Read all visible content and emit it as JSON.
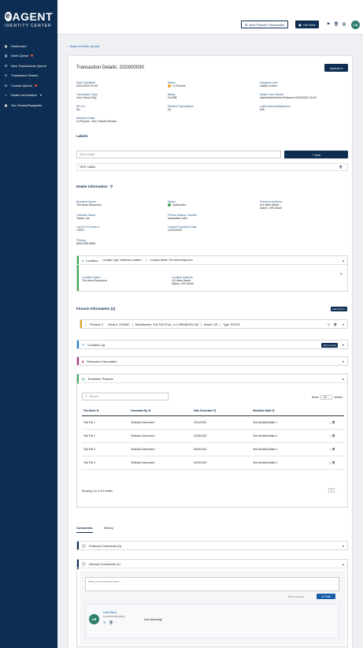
{
  "brand": {
    "name": "AGENT",
    "e": "e",
    "subtitle": "IDENTITY CENTER"
  },
  "sidebar": {
    "items": [
      {
        "label": "Dashboard",
        "icon": "grid-icon"
      },
      {
        "label": "Work Queue",
        "icon": "inbox-icon",
        "dot": true
      },
      {
        "label": "New Transactions Queue",
        "icon": "list-icon"
      },
      {
        "label": "Transaction Search",
        "icon": "search-icon"
      },
      {
        "label": "Contact Queue",
        "icon": "phone-icon",
        "dot": true
      },
      {
        "label": "Dealer Information",
        "icon": "store-icon",
        "caret": "▾"
      },
      {
        "label": "Gun Shows/Swapsets",
        "icon": "calendar-icon"
      }
    ]
  },
  "topbar": {
    "new_firearm_label": "New Firearm Transaction",
    "get_next_label": "Get Next",
    "avatar_initials": "LB"
  },
  "back_link": "Back to Work Queue",
  "transaction": {
    "title": "Transaction Details: 22G000030",
    "actions_label": "Actions",
    "fields": [
      {
        "label": "Date Submitted",
        "value": "02/10/2022 10:40"
      },
      {
        "label": "Status",
        "value": "In Process"
      },
      {
        "label": "Assigned User",
        "value": "Caitlyn Colton"
      },
      {
        "label": "Transaction Type",
        "value": "Gun Check Only"
      },
      {
        "label": "Billing",
        "value": "Full Bill"
      },
      {
        "label": "Dealer Last Viewed",
        "value": "AdminAdminsTest Robinson 02/10/2022 15:42"
      },
      {
        "label": "Re-run",
        "value": "No"
      },
      {
        "label": "Related Transactions",
        "value": "(0)"
      },
      {
        "label": "Latest Acknowledgement",
        "value": "N/A"
      },
      {
        "label": "Workflow State",
        "value": "In Process - Non Trainee Review"
      }
    ]
  },
  "labels": {
    "title": "Labels",
    "select_placeholder": "Select Label",
    "add_label": "Add",
    "items": [
      "TEST LABEL"
    ]
  },
  "dealer": {
    "title": "Dealer Information",
    "fields": [
      {
        "label": "Business Name",
        "value": "The Arms Emporium"
      },
      {
        "label": "Status",
        "value": "Authorized"
      },
      {
        "label": "Premises Address",
        "value": "111 Main Street"
      },
      {
        "label": "",
        "value": "Salem, OR 33440"
      },
      {
        "label": "Licensee Name",
        "value": "Trader Joe"
      },
      {
        "label": "Person Making Transfer",
        "value": "transaction sam"
      },
      {
        "label": "Last 5 of License #",
        "value": "70970"
      },
      {
        "label": "License Expiration Date",
        "value": "12/25/2030"
      },
      {
        "label": "Primary",
        "value": "(503) 555-5555"
      }
    ]
  },
  "location": {
    "title": "Location",
    "type_text": "Location Type: Business Location",
    "name_text": "Location Name: The Arms Emporium",
    "name_label": "Location Name",
    "name_value": "The Arms Emporium",
    "address_label": "Location Address",
    "address_line1": "111 Main Street",
    "address_line2": "Salem, OR 33440"
  },
  "firearm": {
    "title": "Firearm Information (1)",
    "add_label": "Add Firearm",
    "item_title": "Firearm 1",
    "serial": "Serial #: 1234567",
    "manufacturer": "Manufacturer: 1H4 TACTICAL, LLC BRANDON, MS",
    "model": "Model: 123",
    "type": "Type: PISTOL"
  },
  "contact_log": {
    "title": "Contact Log",
    "add_label": "Add Contact"
  },
  "research": {
    "title": "Research Information"
  },
  "examiner": {
    "title": "Examiner Reports",
    "search_placeholder": "Search",
    "show_label": "Show",
    "show_value": "10",
    "entries_label": "entries",
    "columns": [
      "File Name",
      "Generated By",
      "Date Generated",
      "Workflow State"
    ],
    "rows": [
      [
        "Test File 1",
        "TestData Generator1",
        "03/11/2022",
        "Test WorkflowState 1"
      ],
      [
        "Test File 2",
        "TestData Generator2",
        "02/18/2022",
        "Test WorkflowState 6"
      ],
      [
        "Test File 3",
        "TestData Generator3",
        "08/23/2021",
        "Test WorkflowState 4"
      ],
      [
        "Test File 4",
        "TestData Generator4",
        "02/04/2021",
        "Test WorkflowState 3"
      ]
    ],
    "footer": "Showing 1 to 4 of 4 entries",
    "page": "1"
  },
  "comments_tabs": [
    "Comments",
    "History"
  ],
  "external_comments": {
    "title": "External Comments (0)"
  },
  "internal_comments": {
    "title": "Internal Comments (1)",
    "placeholder": "Write your comment here...",
    "char_count": "5000 characters",
    "post_label": "Post",
    "comment": {
      "initials": "LB",
      "author": "Laura Berry",
      "timestamp": "14:48:40 03/11/2022",
      "text": "how interesting!"
    }
  }
}
